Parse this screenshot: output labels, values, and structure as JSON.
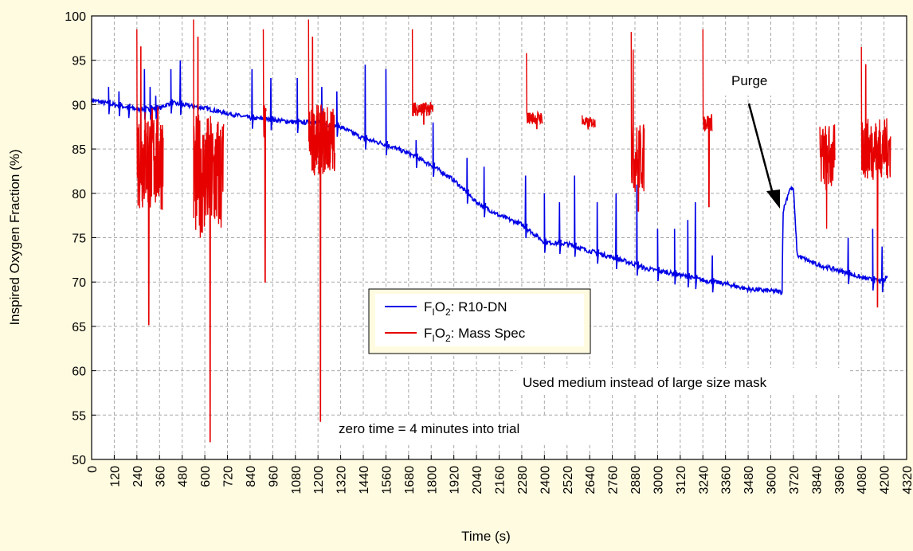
{
  "chart_data": {
    "type": "line",
    "xlabel": "Time (s)",
    "ylabel": "Inspired Oxygen Fraction (%)",
    "xlim": [
      0,
      4320
    ],
    "ylim": [
      50,
      100
    ],
    "x_ticks": [
      0,
      120,
      240,
      360,
      480,
      600,
      720,
      840,
      960,
      1080,
      1200,
      1320,
      1440,
      1560,
      1680,
      1800,
      1920,
      2040,
      2160,
      2280,
      2400,
      2520,
      2640,
      2760,
      2880,
      3000,
      3120,
      3240,
      3360,
      3480,
      3600,
      3720,
      3840,
      3960,
      4080,
      4200,
      4320
    ],
    "y_ticks": [
      50,
      55,
      60,
      65,
      70,
      75,
      80,
      85,
      90,
      95,
      100
    ],
    "grid": true,
    "legend_position": "center",
    "legend": [
      {
        "sub1": "F",
        "sub2": "I",
        "sub3": "O",
        "sub4": "2",
        "suffix": ": R10-DN",
        "color": "#0000e6"
      },
      {
        "sub1": "F",
        "sub2": "I",
        "sub3": "O",
        "sub4": "2",
        "suffix": ": Mass Spec",
        "color": "#e60000"
      }
    ],
    "annotations": {
      "purge": "Purge",
      "mask_note": "Used medium instead of large size mask",
      "zero_time": "zero time = 4 minutes into trial"
    },
    "series": [
      {
        "color": "#0000e6",
        "baseline": [
          [
            0,
            90.5
          ],
          [
            120,
            90
          ],
          [
            240,
            89.5
          ],
          [
            300,
            89.5
          ],
          [
            360,
            89.6
          ],
          [
            420,
            90.2
          ],
          [
            480,
            90
          ],
          [
            600,
            89.6
          ],
          [
            720,
            89
          ],
          [
            840,
            88.5
          ],
          [
            960,
            88.3
          ],
          [
            1080,
            88
          ],
          [
            1200,
            88
          ],
          [
            1320,
            87.5
          ],
          [
            1440,
            86.2
          ],
          [
            1560,
            85.5
          ],
          [
            1680,
            84.5
          ],
          [
            1800,
            83.2
          ],
          [
            1920,
            81.5
          ],
          [
            2040,
            79
          ],
          [
            2160,
            77.5
          ],
          [
            2280,
            76.5
          ],
          [
            2400,
            74.5
          ],
          [
            2520,
            74.3
          ],
          [
            2640,
            73.5
          ],
          [
            2760,
            72.8
          ],
          [
            2880,
            72
          ],
          [
            2940,
            71.5
          ],
          [
            3000,
            71.3
          ],
          [
            3120,
            70.8
          ],
          [
            3240,
            70.2
          ],
          [
            3360,
            69.8
          ],
          [
            3480,
            69.2
          ],
          [
            3600,
            69
          ],
          [
            3650,
            68.9
          ],
          [
            3660,
            68.8
          ],
          [
            3665,
            78
          ],
          [
            3700,
            80.5
          ],
          [
            3720,
            80.5
          ],
          [
            3740,
            73
          ],
          [
            3840,
            72
          ],
          [
            3960,
            71.3
          ],
          [
            4080,
            70.5
          ],
          [
            4200,
            70
          ],
          [
            4220,
            71
          ]
        ],
        "spikes": [
          [
            90,
            92
          ],
          [
            145,
            91.5
          ],
          [
            195,
            90
          ],
          [
            280,
            94
          ],
          [
            310,
            92
          ],
          [
            340,
            91
          ],
          [
            420,
            94
          ],
          [
            470,
            95
          ],
          [
            850,
            94
          ],
          [
            950,
            93
          ],
          [
            1090,
            93
          ],
          [
            1220,
            92
          ],
          [
            1300,
            91.5
          ],
          [
            1450,
            94.5
          ],
          [
            1560,
            94
          ],
          [
            1720,
            86
          ],
          [
            1810,
            88
          ],
          [
            1990,
            84
          ],
          [
            2080,
            83
          ],
          [
            2300,
            82
          ],
          [
            2400,
            80
          ],
          [
            2480,
            79
          ],
          [
            2560,
            82
          ],
          [
            2680,
            79
          ],
          [
            2780,
            80
          ],
          [
            2890,
            81
          ],
          [
            3000,
            76
          ],
          [
            3090,
            76
          ],
          [
            3160,
            77
          ],
          [
            3200,
            79
          ],
          [
            3290,
            73
          ],
          [
            4010,
            75
          ],
          [
            4140,
            76
          ],
          [
            4190,
            74
          ]
        ]
      },
      {
        "color": "#e60000",
        "segments": [
          {
            "start": 240,
            "end": 380,
            "center": 84,
            "amp": 6,
            "min": 65.2,
            "max": 98.5
          },
          {
            "start": 540,
            "end": 700,
            "center": 82,
            "amp": 7,
            "min": 52,
            "max": 99.6
          },
          {
            "start": 910,
            "end": 925,
            "center": 88,
            "amp": 2,
            "min": 70,
            "max": 98.5
          },
          {
            "start": 1150,
            "end": 1290,
            "center": 86,
            "amp": 4,
            "min": 54.3,
            "max": 99.6
          },
          {
            "start": 1700,
            "end": 1810,
            "center": 89.5,
            "amp": 0.8,
            "min": 87.8,
            "max": 98.5
          },
          {
            "start": 2305,
            "end": 2390,
            "center": 88.5,
            "amp": 0.7,
            "min": 87.3,
            "max": 95.8
          },
          {
            "start": 2600,
            "end": 2670,
            "center": 88,
            "amp": 0.6,
            "min": 87.2,
            "max": 88.8
          },
          {
            "start": 2860,
            "end": 2930,
            "center": 84,
            "amp": 4,
            "min": 78,
            "max": 98.2
          },
          {
            "start": 3240,
            "end": 3290,
            "center": 88,
            "amp": 1,
            "min": 78.5,
            "max": 98.5
          },
          {
            "start": 3860,
            "end": 3940,
            "center": 84,
            "amp": 4,
            "min": 76,
            "max": 87.5
          },
          {
            "start": 4080,
            "end": 4235,
            "center": 85,
            "amp": 3.5,
            "min": 67.2,
            "max": 96.5
          }
        ]
      }
    ]
  }
}
